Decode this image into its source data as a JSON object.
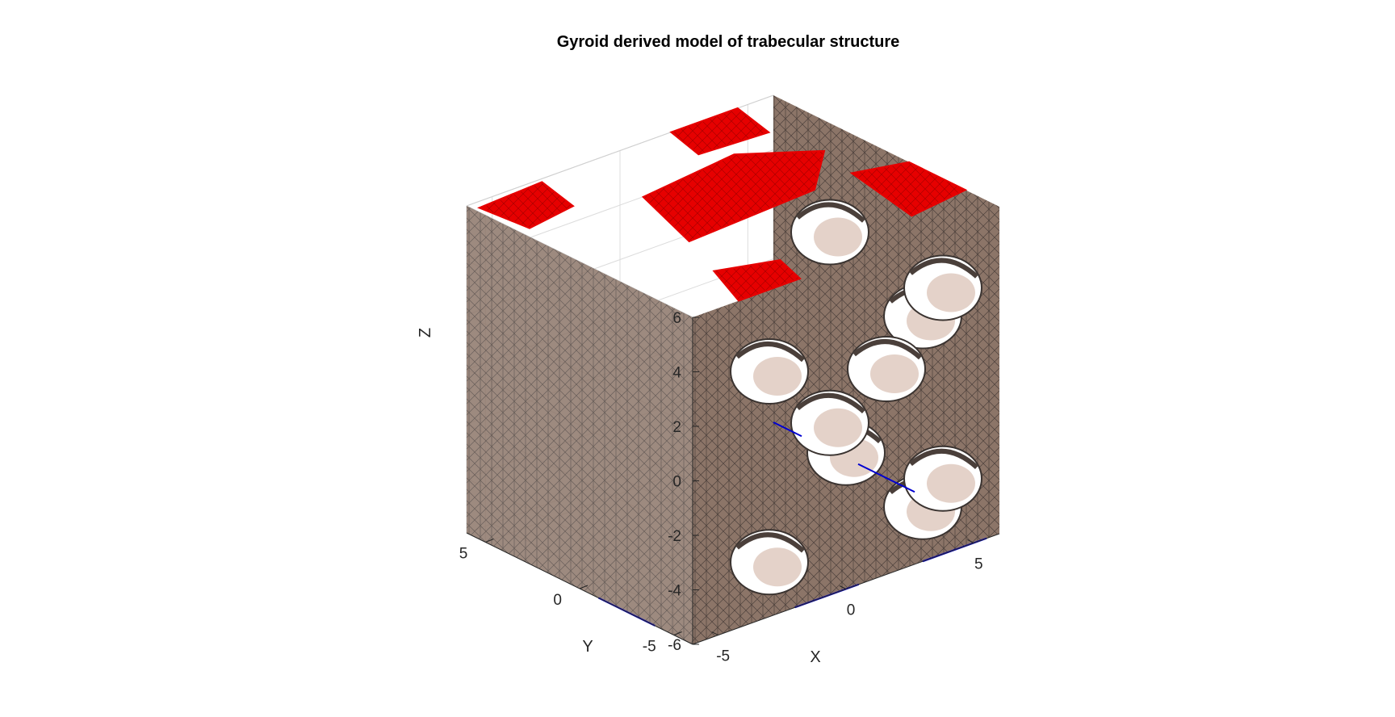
{
  "chart_data": {
    "type": "surface3d",
    "title": "Gyroid derived model of trabecular structure",
    "xlabel": "X",
    "ylabel": "Y",
    "zlabel": "Z",
    "xlim": [
      -6,
      6
    ],
    "ylim": [
      -6,
      6
    ],
    "zlim": [
      -6,
      6
    ],
    "xticks": [
      -5,
      0,
      5
    ],
    "yticks": [
      -5,
      0,
      5
    ],
    "zticks": [
      -6,
      -4,
      -2,
      0,
      2,
      4,
      6
    ],
    "grid": true,
    "colors": {
      "surface": "#8c7568",
      "surface_light": "#d9bfb2",
      "mesh_edges": "#3a3330",
      "top_caps": "#e60000",
      "bottom_edge": "#0000d0"
    }
  }
}
